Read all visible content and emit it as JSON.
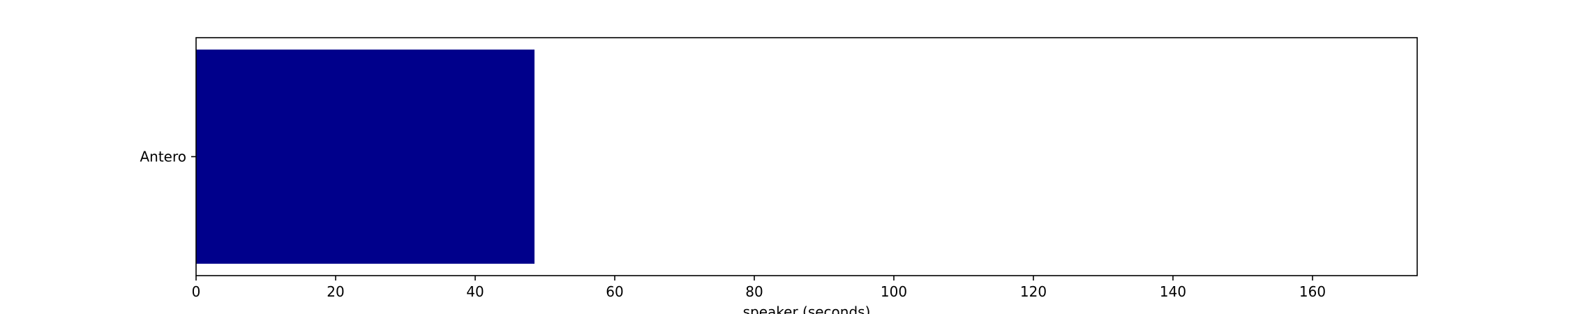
{
  "chart_data": {
    "type": "bar",
    "orientation": "horizontal",
    "categories": [
      "Antero"
    ],
    "values": [
      48.5
    ],
    "title": "",
    "xlabel": "speaker (seconds)",
    "ylabel": "",
    "xlim": [
      0,
      175
    ],
    "xticks": [
      0,
      20,
      40,
      60,
      80,
      100,
      120,
      140,
      160
    ],
    "xtick_labels": [
      "0",
      "20",
      "40",
      "60",
      "80",
      "100",
      "120",
      "140",
      "160"
    ],
    "grid": false,
    "legend": "none",
    "colors": {
      "bar": "#00008b",
      "axes": "#000000",
      "background": "#ffffff"
    }
  }
}
